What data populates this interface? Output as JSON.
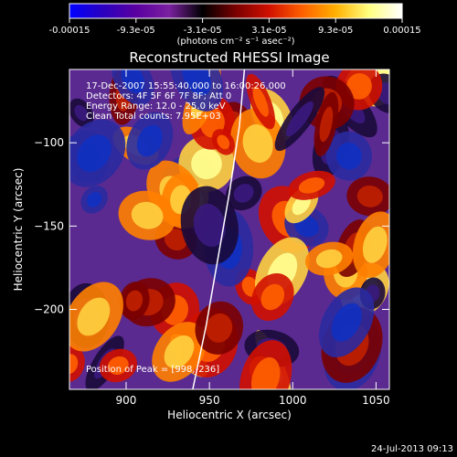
{
  "chart_data": {
    "type": "heatmap",
    "title": "Reconstructed RHESSI Image",
    "colorbar": {
      "ticks": [
        "-0.00015",
        "-9.3e-05",
        "-3.1e-05",
        "3.1e-05",
        "9.3e-05",
        "0.00015"
      ],
      "range": [
        -0.00015,
        0.00015
      ],
      "units_label": "(photons cm⁻² s⁻¹ asec⁻²)",
      "colormap": [
        "#0000ff",
        "#2a00c0",
        "#5a00a0",
        "#7a20a0",
        "#000000",
        "#7a0000",
        "#d01000",
        "#ff6000",
        "#ffb000",
        "#ffff80",
        "#ffffff"
      ]
    },
    "xlabel": "Heliocentric X (arcsec)",
    "ylabel": "Heliocentric Y (arcsec)",
    "xlim": [
      866,
      1058
    ],
    "ylim": [
      -248,
      -56
    ],
    "xticks": [
      900,
      950,
      1000,
      1050
    ],
    "yticks": [
      -100,
      -150,
      -200
    ],
    "annotations": [
      "17-Dec-2007 15:55:40.000 to 16:00:26.000",
      "Detectors: 4F 5F 6F 7F 8F; Att 0",
      "Energy Range: 12.0 - 25.0 keV",
      "Clean   Total counts: 7.95E+03"
    ],
    "peak_label": "Position of Peak = [998,-236]",
    "limb_curve": [
      [
        940,
        -248
      ],
      [
        948,
        -210
      ],
      [
        955,
        -170
      ],
      [
        962,
        -130
      ],
      [
        968,
        -90
      ],
      [
        971,
        -56
      ]
    ]
  },
  "footer": {
    "timestamp": "24-Jul-2013 09:13"
  }
}
